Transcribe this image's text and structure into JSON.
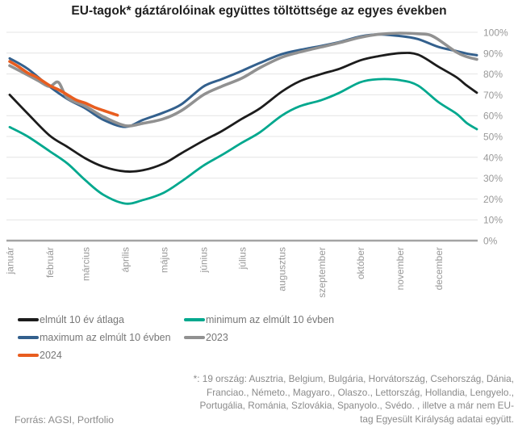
{
  "title": "EU-tagok* gáztárolóinak együttes töltöttsége az egyes években",
  "source": "Forrás: AGSI, Portfolio",
  "footnote_lines": [
    "*: 19 ország: Ausztria, Belgium, Bulgária, Horvátország, Csehország, Dánia,",
    "Franciao., Németo., Magyaro., Olaszo., Lettország, Hollandia, Lengyelo.,",
    "Portugália, Románia, Szlovákia, Spanyolo., Svédo. , illetve a már nem EU-",
    "tag Egyesült Királyság adatai együtt."
  ],
  "colors": {
    "title_text": "#212121",
    "grid": "#e4e4e4",
    "axis": "#a3a3a3",
    "tick_label": "#999999",
    "legend_text": "#777777",
    "footnote_text": "#8a8a8a"
  },
  "chart_data": {
    "type": "line",
    "title": "EU-tagok* gáztárolóinak együttes töltöttsége az egyes években",
    "xlabel": "",
    "ylabel": "",
    "ylim": [
      0,
      100
    ],
    "grid": true,
    "legend_position": "bottom-left",
    "y_axis_side": "right",
    "y_ticks": {
      "values": [
        0,
        10,
        20,
        30,
        40,
        50,
        60,
        70,
        80,
        90,
        100
      ],
      "labels": [
        "0%",
        "10%",
        "20%",
        "30%",
        "40%",
        "50%",
        "60%",
        "70%",
        "80%",
        "90%",
        "100%"
      ]
    },
    "x_months": {
      "labels": [
        "január",
        "február",
        "március",
        "április",
        "május",
        "június",
        "július",
        "augusztus",
        "szeptember",
        "október",
        "november",
        "december"
      ],
      "start_days": [
        1,
        32,
        60,
        91,
        121,
        152,
        182,
        213,
        244,
        274,
        305,
        335
      ]
    },
    "series": [
      {
        "key": "average",
        "name": "elmúlt 10 év átlaga",
        "color": "#1c1c1c",
        "width": 2.8,
        "days": [
          1,
          15,
          32,
          46,
          60,
          74,
          91,
          105,
          121,
          135,
          152,
          166,
          182,
          196,
          213,
          227,
          244,
          258,
          274,
          288,
          305,
          319,
          335,
          349,
          357,
          365
        ],
        "values": [
          70,
          61,
          50.5,
          45,
          39.5,
          35.5,
          33.2,
          33.8,
          37,
          42,
          48,
          52.5,
          58.5,
          63.5,
          71.5,
          76.5,
          80,
          82.5,
          86.5,
          88.5,
          90,
          89.3,
          83.5,
          78.5,
          74.5,
          71
        ]
      },
      {
        "key": "minimum",
        "name": "minimum az elmúlt 10 évben",
        "color": "#00a88e",
        "width": 2.8,
        "days": [
          1,
          15,
          32,
          46,
          60,
          74,
          91,
          105,
          121,
          135,
          152,
          166,
          182,
          196,
          213,
          227,
          244,
          258,
          274,
          288,
          305,
          319,
          335,
          349,
          357,
          365
        ],
        "values": [
          54.5,
          50,
          43,
          37,
          29,
          22,
          17.8,
          19.5,
          23,
          28.5,
          36,
          41,
          47,
          52,
          60,
          64.5,
          67.5,
          71,
          76,
          77.5,
          77,
          74.5,
          66.5,
          61,
          56.5,
          53.5
        ]
      },
      {
        "key": "maximum",
        "name": "maximum az elmúlt 10 évben",
        "color": "#33608d",
        "width": 3,
        "days": [
          1,
          15,
          32,
          46,
          60,
          74,
          91,
          105,
          121,
          135,
          152,
          166,
          182,
          196,
          213,
          227,
          244,
          258,
          274,
          288,
          305,
          319,
          335,
          349,
          357,
          365
        ],
        "values": [
          87.5,
          82.5,
          74,
          68,
          63.5,
          58,
          54.6,
          58,
          61.5,
          65.5,
          74,
          77.5,
          81.5,
          85.3,
          89.5,
          91.5,
          93.5,
          95.3,
          98,
          99,
          98.2,
          96.8,
          93,
          91,
          89.8,
          89
        ]
      },
      {
        "key": "y2023",
        "name": "2023",
        "color": "#919191",
        "width": 3.6,
        "days": [
          1,
          15,
          24,
          32,
          39,
          46,
          60,
          74,
          91,
          105,
          121,
          135,
          152,
          166,
          182,
          196,
          213,
          227,
          244,
          258,
          274,
          288,
          305,
          319,
          328,
          335,
          349,
          357,
          365
        ],
        "values": [
          84,
          79.5,
          76.5,
          74,
          76,
          68.5,
          64.5,
          59.5,
          55.2,
          56.3,
          58.5,
          62.5,
          70,
          74,
          78,
          83,
          88,
          90.5,
          93,
          95,
          97.5,
          99,
          99.6,
          99.3,
          98.8,
          96.5,
          90.5,
          88.3,
          87
        ]
      },
      {
        "key": "y2024",
        "name": "2024",
        "color": "#e85d1f",
        "width": 3.6,
        "days": [
          1,
          8,
          15,
          22,
          32,
          39,
          46,
          53,
          60,
          67,
          74,
          81,
          85
        ],
        "values": [
          86,
          83.5,
          80.5,
          78.5,
          74.5,
          72.5,
          70,
          67.5,
          66,
          64,
          62.5,
          61,
          60.2
        ]
      }
    ],
    "legend_order": [
      "average",
      "minimum",
      "maximum",
      "y2023",
      "y2024"
    ]
  }
}
